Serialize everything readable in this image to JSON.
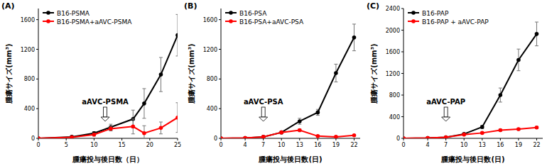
{
  "chart_data": [
    {
      "type": "line",
      "label": "(A)",
      "y_label": "腫瘍サイズ(mm³)",
      "x_label": "腫瘍投与後日数（日）",
      "xlim": [
        0,
        25
      ],
      "xticks": [
        0,
        5,
        10,
        15,
        20,
        25
      ],
      "ylim": [
        0,
        1750
      ],
      "yticks": [
        0,
        400,
        800,
        1200,
        1600
      ],
      "grid": false,
      "legend": "top-left",
      "marker": "circle",
      "x": [
        0,
        6,
        10,
        13,
        17,
        19,
        22,
        25
      ],
      "series": [
        {
          "name": "B16-PSMA",
          "color": "#000000",
          "values": [
            0,
            20,
            70,
            150,
            260,
            470,
            860,
            1390
          ],
          "errors": [
            0,
            10,
            20,
            40,
            120,
            200,
            230,
            280
          ]
        },
        {
          "name": "B16-PSMA+aAVC-PSMA",
          "color": "#ff0000",
          "values": [
            0,
            15,
            50,
            130,
            160,
            70,
            140,
            280
          ],
          "errors": [
            0,
            10,
            20,
            30,
            100,
            100,
            80,
            200
          ]
        }
      ],
      "annotations": [
        {
          "text": "aAVC-PSMA",
          "x": 12
        }
      ]
    },
    {
      "type": "line",
      "label": "(B)",
      "y_label": "腫瘍サイズ(mm³)",
      "x_label": "腫瘍投与後日数(日)",
      "xlim": [
        0,
        23
      ],
      "xticks": [
        0,
        4,
        7,
        10,
        13,
        16,
        19,
        22
      ],
      "ylim": [
        0,
        1750
      ],
      "yticks": [
        0,
        400,
        800,
        1200,
        1600
      ],
      "grid": false,
      "legend": "top-left",
      "marker": "circle",
      "x": [
        0,
        4,
        7,
        10,
        13,
        16,
        19,
        22
      ],
      "series": [
        {
          "name": "B16-PSA",
          "color": "#000000",
          "values": [
            0,
            5,
            20,
            80,
            230,
            350,
            880,
            1360
          ],
          "errors": [
            0,
            3,
            10,
            15,
            40,
            40,
            120,
            180
          ]
        },
        {
          "name": "B16-PSA+aAVC-PSA",
          "color": "#ff0000",
          "values": [
            0,
            5,
            20,
            80,
            110,
            30,
            20,
            40
          ],
          "errors": [
            0,
            3,
            10,
            10,
            15,
            10,
            8,
            10
          ]
        }
      ],
      "annotations": [
        {
          "text": "aAVC-PSA",
          "x": 7
        }
      ]
    },
    {
      "type": "line",
      "label": "(C)",
      "y_label": "腫瘍サイズ(mm³)",
      "x_label": "腫瘍投与後日数(日)",
      "xlim": [
        0,
        23
      ],
      "xticks": [
        0,
        4,
        7,
        10,
        13,
        16,
        19,
        22
      ],
      "ylim": [
        0,
        2400
      ],
      "yticks": [
        0,
        400,
        800,
        1200,
        1600,
        2000,
        2400
      ],
      "grid": false,
      "legend": "top-left",
      "marker": "circle",
      "x": [
        0,
        4,
        7,
        10,
        13,
        16,
        19,
        22
      ],
      "series": [
        {
          "name": "B16-PAP",
          "color": "#000000",
          "values": [
            0,
            5,
            20,
            80,
            210,
            800,
            1450,
            1930
          ],
          "errors": [
            0,
            3,
            5,
            15,
            30,
            130,
            200,
            220
          ]
        },
        {
          "name": "B16-PAP + aAVC-PAP",
          "color": "#ff0000",
          "values": [
            0,
            5,
            20,
            70,
            100,
            150,
            170,
            200
          ],
          "errors": [
            0,
            3,
            5,
            10,
            15,
            20,
            20,
            20
          ]
        }
      ],
      "annotations": [
        {
          "text": "aAVC-PAP",
          "x": 7
        }
      ]
    }
  ]
}
